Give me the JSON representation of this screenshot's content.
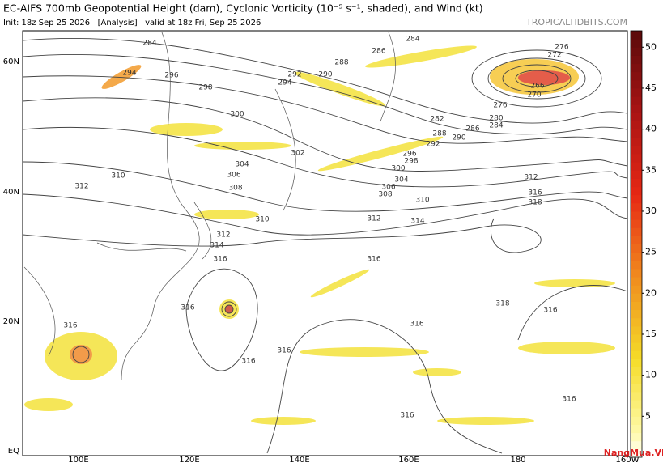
{
  "header": {
    "title": "EC-AIFS 700mb Geopotential Height (dam), Cyclonic Vorticity (10⁻⁵ s⁻¹, shaded), and Wind (kt)",
    "init": "Init: 18z Sep 25 2026   [Analysis]   valid at 18z Fri, Sep 25 2026",
    "site": "TROPICALTIDBITS.COM"
  },
  "map": {
    "lat_labels": [
      "60N",
      "40N",
      "20N",
      "EQ"
    ],
    "lon_labels": [
      "100E",
      "120E",
      "140E",
      "160E",
      "180",
      "160W"
    ],
    "contour_labels": [
      "284",
      "284",
      "286",
      "288",
      "290",
      "292",
      "294",
      "296",
      "298",
      "294",
      "300",
      "302",
      "304",
      "306",
      "308",
      "310",
      "312",
      "310",
      "312",
      "314",
      "316",
      "312",
      "314",
      "310",
      "308",
      "306",
      "304",
      "300",
      "298",
      "296",
      "292",
      "290",
      "288",
      "286",
      "284",
      "282",
      "280",
      "276",
      "270",
      "266",
      "272",
      "276",
      "312",
      "316",
      "318",
      "316",
      "316",
      "318",
      "316",
      "316",
      "316",
      "316",
      "316",
      "316",
      "316"
    ]
  },
  "colorbar": {
    "range": [
      0,
      52
    ],
    "ticks": [
      5,
      10,
      15,
      20,
      25,
      30,
      35,
      40,
      45,
      50
    ]
  },
  "watermark": "NangMua.VN"
}
